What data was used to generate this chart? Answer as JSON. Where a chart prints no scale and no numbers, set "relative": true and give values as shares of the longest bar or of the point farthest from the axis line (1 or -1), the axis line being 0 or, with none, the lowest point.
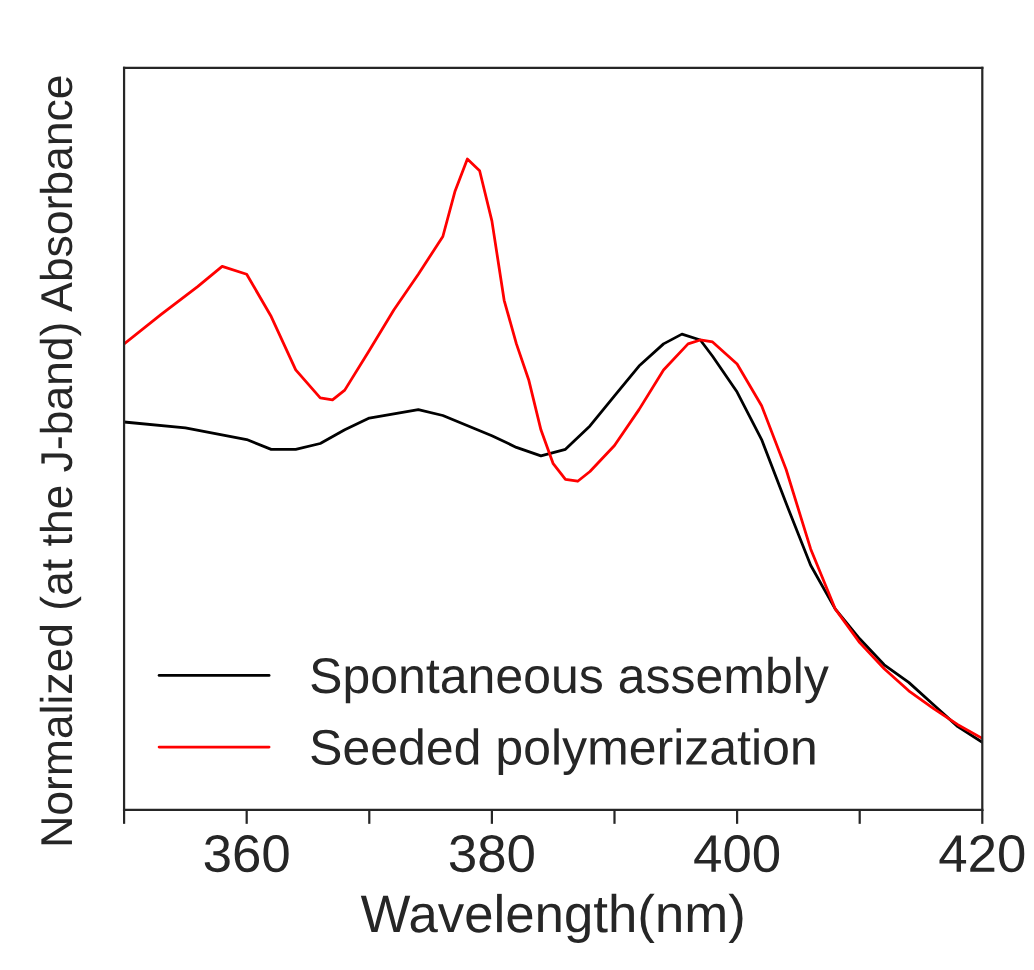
{
  "chart_data": {
    "type": "line",
    "relative": true,
    "xlabel": "Wavelength(nm)",
    "ylabel": "Normalized (at the J-band) Absorbance",
    "xlim": [
      350,
      420
    ],
    "xticks": [
      {
        "value": 350,
        "label": null
      },
      360,
      {
        "value": 370,
        "label": null
      },
      380,
      {
        "value": 390,
        "label": null
      },
      400,
      {
        "value": 410,
        "label": null
      },
      420
    ],
    "legend": "bottom left",
    "grid": false,
    "series": [
      {
        "name": "Spontaneous assembly",
        "color": "#000000",
        "x": [
          350,
          355,
          360,
          362,
          364,
          366,
          368,
          370,
          374,
          376,
          380,
          382,
          384,
          386,
          388,
          390,
          392,
          394,
          395.5,
          397,
          398,
          400,
          402,
          404,
          406,
          408,
          410,
          412,
          414,
          416,
          418,
          420
        ],
        "values": [
          0.596,
          0.587,
          0.569,
          0.554,
          0.554,
          0.563,
          0.584,
          0.602,
          0.615,
          0.606,
          0.575,
          0.557,
          0.544,
          0.554,
          0.59,
          0.636,
          0.682,
          0.716,
          0.731,
          0.722,
          0.697,
          0.642,
          0.569,
          0.471,
          0.376,
          0.309,
          0.263,
          0.223,
          0.196,
          0.162,
          0.128,
          0.104
        ]
      },
      {
        "name": "Seeded polymerization",
        "color": "#ff0000",
        "x": [
          350,
          353,
          356,
          358,
          360,
          362,
          364,
          366,
          367,
          368,
          370,
          372,
          374,
          376,
          377,
          378,
          379,
          380,
          381,
          382,
          383,
          384,
          385,
          386,
          387,
          388,
          390,
          392,
          394,
          396,
          397,
          398,
          400,
          402,
          404,
          406,
          408,
          410,
          412,
          414,
          416,
          418,
          420
        ],
        "values": [
          0.716,
          0.761,
          0.804,
          0.835,
          0.823,
          0.758,
          0.676,
          0.633,
          0.63,
          0.645,
          0.706,
          0.768,
          0.823,
          0.881,
          0.951,
          1.0,
          0.982,
          0.905,
          0.783,
          0.716,
          0.661,
          0.584,
          0.532,
          0.508,
          0.505,
          0.52,
          0.56,
          0.615,
          0.676,
          0.716,
          0.722,
          0.719,
          0.685,
          0.621,
          0.523,
          0.401,
          0.309,
          0.257,
          0.217,
          0.183,
          0.156,
          0.131,
          0.11
        ]
      }
    ]
  }
}
